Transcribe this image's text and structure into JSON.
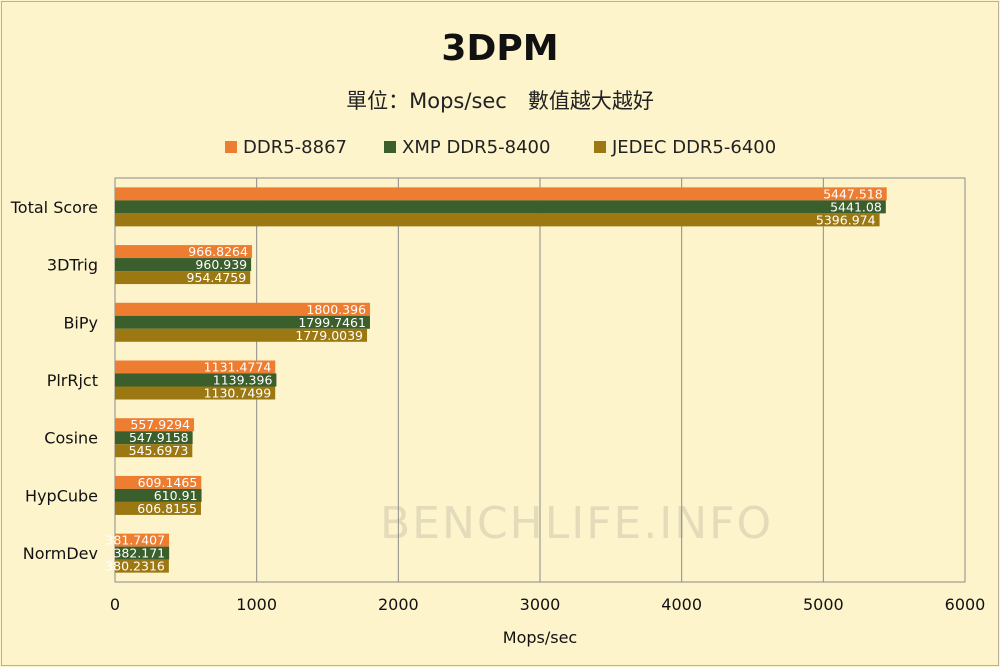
{
  "chart_data": {
    "type": "bar",
    "orientation": "horizontal",
    "title": "3DPM",
    "subtitle": "單位：Mops/sec　數值越大越好",
    "xlabel": "Mops/sec",
    "ylabel": "",
    "xlim": [
      0,
      6000
    ],
    "x_ticks": [
      0,
      1000,
      2000,
      3000,
      4000,
      5000,
      6000
    ],
    "grid": "vertical",
    "legend_position": "top",
    "watermark": "BENCHLIFE.INFO",
    "categories": [
      "Total Score",
      "3DTrig",
      "BiPy",
      "PlrRjct",
      "Cosine",
      "HypCube",
      "NormDev"
    ],
    "series": [
      {
        "name": "DDR5-8867",
        "color": "#ed7d31",
        "values": [
          5447.518,
          966.8264,
          1800.396,
          1131.4774,
          557.9294,
          609.1465,
          381.7407
        ],
        "labels": [
          "5447.518",
          "966.8264",
          "1800.396",
          "1131.4774",
          "557.9294",
          "609.1465",
          "381.7407"
        ]
      },
      {
        "name": "XMP DDR5-8400",
        "color": "#3a5e2c",
        "values": [
          5441.08,
          960.939,
          1799.7461,
          1139.396,
          547.9158,
          610.91,
          382.171
        ],
        "labels": [
          "5441.08",
          "960.939",
          "1799.7461",
          "1139.396",
          "547.9158",
          "610.91",
          "382.171"
        ]
      },
      {
        "name": "JEDEC DDR5-6400",
        "color": "#9c7812",
        "values": [
          5396.974,
          954.4759,
          1779.0039,
          1130.7499,
          545.6973,
          606.8155,
          380.2316
        ],
        "labels": [
          "5396.974",
          "954.4759",
          "1779.0039",
          "1130.7499",
          "545.6973",
          "606.8155",
          "380.2316"
        ]
      }
    ]
  }
}
